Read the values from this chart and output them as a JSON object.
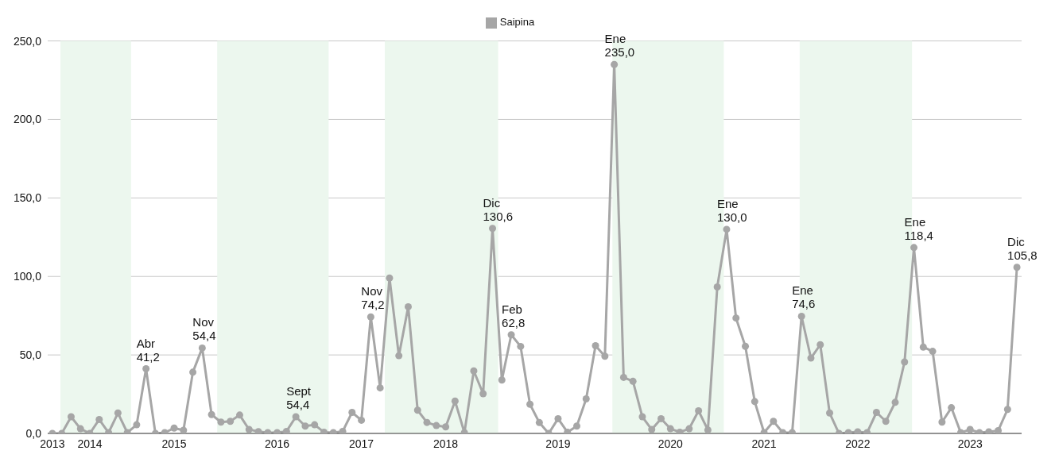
{
  "chart_data": {
    "type": "line",
    "categories": [
      "2013",
      null,
      null,
      null,
      "2014",
      null,
      null,
      null,
      null,
      null,
      null,
      null,
      null,
      "2015",
      null,
      null,
      null,
      null,
      null,
      null,
      null,
      null,
      null,
      null,
      "2016",
      null,
      null,
      null,
      null,
      null,
      null,
      null,
      null,
      "2017",
      null,
      null,
      null,
      null,
      null,
      null,
      null,
      null,
      "2018",
      null,
      null,
      null,
      null,
      null,
      null,
      null,
      null,
      null,
      null,
      null,
      "2019",
      null,
      null,
      null,
      null,
      null,
      null,
      null,
      null,
      null,
      null,
      null,
      "2020",
      null,
      null,
      null,
      null,
      null,
      null,
      null,
      null,
      null,
      "2021",
      null,
      null,
      null,
      null,
      null,
      null,
      null,
      null,
      null,
      "2022",
      null,
      null,
      null,
      null,
      null,
      null,
      null,
      null,
      null,
      null,
      null,
      "2023",
      null,
      null,
      null,
      null,
      null
    ],
    "series": [
      {
        "name": "Saipina",
        "color": "#a6a6a6",
        "values": [
          0,
          0,
          10.6,
          3,
          0,
          8.9,
          0.5,
          13,
          0.5,
          5.5,
          41.2,
          0,
          0.5,
          3.4,
          2,
          39,
          54.4,
          12,
          7.2,
          7.7,
          11.7,
          2.5,
          1.2,
          0.5,
          0.5,
          1.3,
          10.6,
          4.7,
          5.5,
          0.8,
          0.5,
          1.3,
          13.4,
          8.4,
          74.2,
          29,
          99,
          49.5,
          80.7,
          14.8,
          7,
          5,
          4.2,
          20.6,
          0.5,
          39.8,
          25.3,
          130.6,
          34,
          62.8,
          55.4,
          18.6,
          6.9,
          0,
          9.4,
          0.8,
          4.7,
          22,
          55.9,
          49.2,
          235,
          35.7,
          33.2,
          10.6,
          2.5,
          9.4,
          3,
          0.8,
          3,
          14.4,
          2.2,
          93.3,
          130,
          73.5,
          55.5,
          20.3,
          0.5,
          7.7,
          0.5,
          0.5,
          74.6,
          48,
          56.5,
          13,
          0,
          0.5,
          1,
          0.5,
          13.4,
          7.7,
          19.8,
          45.5,
          118.4,
          55,
          52.3,
          7.2,
          16.4,
          0.5,
          2.5,
          0.5,
          1,
          1.8,
          15.3,
          105.8
        ]
      }
    ],
    "ylim": [
      0,
      250
    ],
    "yticks": [
      {
        "value": 0,
        "label": "0,0"
      },
      {
        "value": 50,
        "label": "50,0"
      },
      {
        "value": 100,
        "label": "100,0"
      },
      {
        "value": 150,
        "label": "150,0"
      },
      {
        "value": 200,
        "label": "200,0"
      },
      {
        "value": 250,
        "label": "250,0"
      }
    ],
    "annotations": [
      {
        "text": "Abr\n41,2",
        "y": 41.2
      },
      {
        "text": "Nov\n54,4",
        "y": 54.4
      },
      {
        "text": "Sept\n54,4",
        "y": 10.6
      },
      {
        "text": "Nov\n74,2",
        "y": 74.2
      },
      {
        "text": "Dic\n130,6",
        "y": 130.6
      },
      {
        "text": "Feb\n62,8",
        "y": 62.8
      },
      {
        "text": "Ene\n235,0",
        "y": 235
      },
      {
        "text": "Ene\n130,0",
        "y": 130
      },
      {
        "text": "Ene\n74,6",
        "y": 74.6
      },
      {
        "text": "Ene\n118,4",
        "y": 118.4
      },
      {
        "text": "Dic\n105,8",
        "y": 105.8
      }
    ],
    "grid": "y",
    "legend": "top",
    "marker": "circle",
    "line_style": "solid"
  }
}
